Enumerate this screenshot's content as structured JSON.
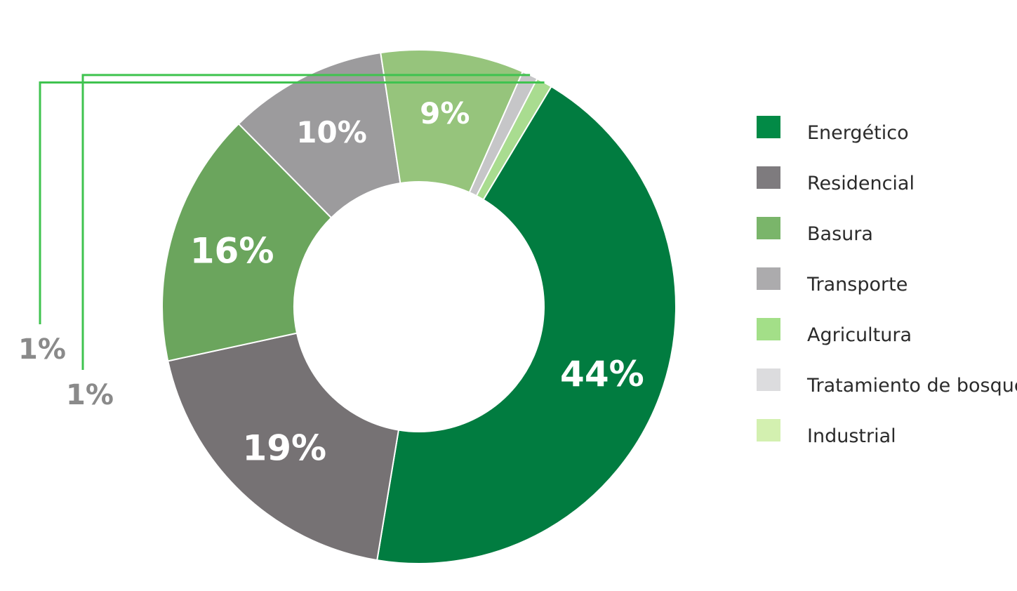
{
  "chart_data": {
    "type": "pie",
    "donut": true,
    "legend_position": "right",
    "categories": [
      "Energético",
      "Residencial",
      "Basura",
      "Transporte",
      "Agricultura",
      "Tratamiento de bosques",
      "Industrial"
    ],
    "slices": [
      {
        "name": "Energético",
        "value": 44,
        "label": "44%",
        "color": "#017c40",
        "legend_color": "#028a46"
      },
      {
        "name": "Residencial",
        "value": 19,
        "label": "19%",
        "color": "#767274",
        "legend_color": "#7e7b7e"
      },
      {
        "name": "Basura",
        "value": 16,
        "label": "16%",
        "color": "#6ba55d",
        "legend_color": "#7ab56a"
      },
      {
        "name": "Transporte",
        "value": 10,
        "label": "10%",
        "color": "#9c9b9d",
        "legend_color": "#acabad"
      },
      {
        "name": "Agricultura",
        "value": 9,
        "label": "9%",
        "color": "#96c47c",
        "legend_color": "#a3df88"
      },
      {
        "name": "Tratamiento de bosques",
        "value": 1,
        "label": "1%",
        "color": "#c6c6c8",
        "legend_color": "#dcdcde"
      },
      {
        "name": "Industrial",
        "value": 1,
        "label": "1%",
        "color": "#a9dc90",
        "legend_color": "#d3f0b0"
      }
    ],
    "leader_line_color": "#3fc34f"
  }
}
